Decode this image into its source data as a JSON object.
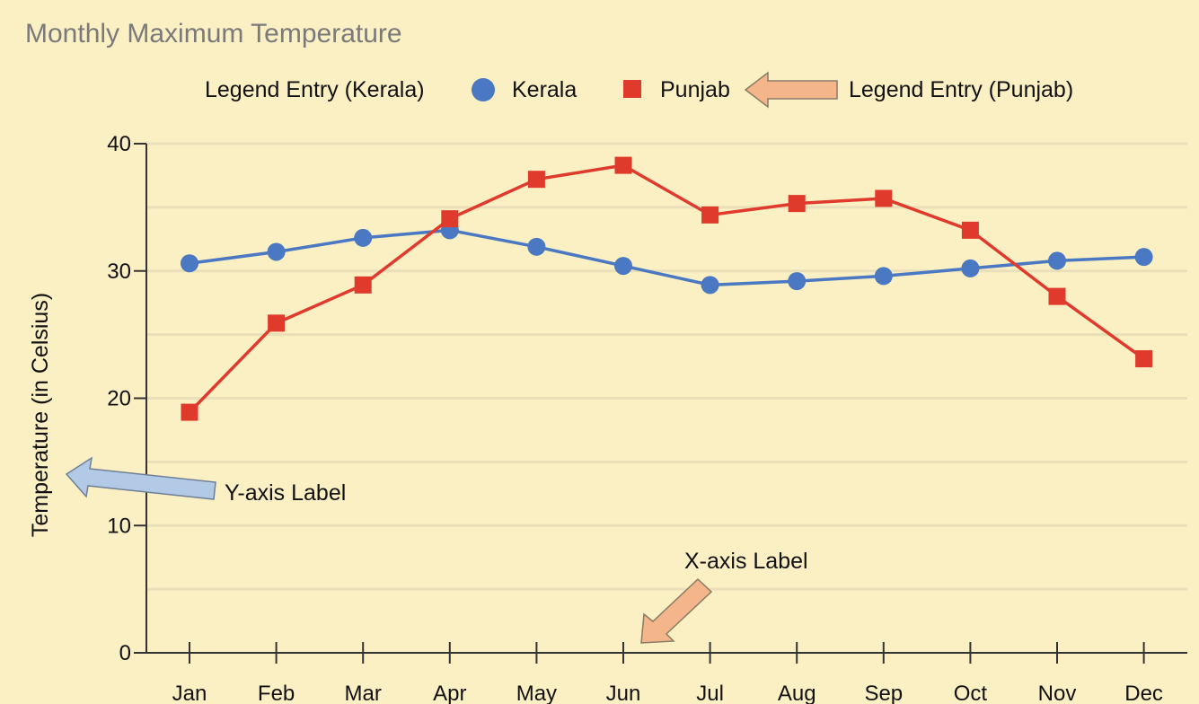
{
  "colors": {
    "background": "#fbefc4",
    "kerala": "#4a78c2",
    "punjab": "#e03a2c",
    "grid": "#e9dfb8",
    "axis": "#333333",
    "callout_orange": "#f4b58a",
    "callout_blue": "#b3cae6",
    "title": "#7a7a7a"
  },
  "chart_data": {
    "type": "line",
    "title": "Monthly Maximum Temperature",
    "ylabel": "Temperature (in Celsius)",
    "xlabel": "",
    "ylim": [
      0,
      40
    ],
    "yticks": [
      0,
      10,
      20,
      30,
      40
    ],
    "grid": true,
    "legend_position": "top",
    "categories": [
      "Jan",
      "Feb",
      "Mar",
      "Apr",
      "May",
      "Jun",
      "Jul",
      "Aug",
      "Sep",
      "Oct",
      "Nov",
      "Dec"
    ],
    "series": [
      {
        "name": "Kerala",
        "marker": "circle",
        "color": "#4a78c2",
        "values": [
          30.6,
          31.5,
          32.6,
          33.2,
          31.9,
          30.4,
          28.9,
          29.2,
          29.6,
          30.2,
          30.8,
          31.1
        ]
      },
      {
        "name": "Punjab",
        "marker": "square",
        "color": "#e03a2c",
        "values": [
          18.9,
          25.9,
          28.9,
          34.1,
          37.2,
          38.3,
          34.4,
          35.3,
          35.7,
          33.2,
          28.0,
          23.1
        ]
      }
    ],
    "annotations": {
      "legend_kerala": "Legend Entry (Kerala)",
      "legend_punjab": "Legend Entry (Punjab)",
      "y_axis_label": "Y-axis Label",
      "x_axis_label": "X-axis Label"
    }
  }
}
